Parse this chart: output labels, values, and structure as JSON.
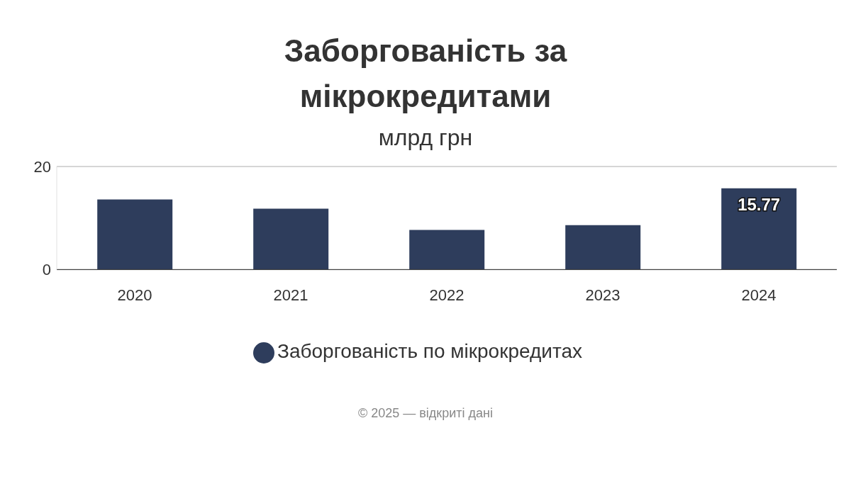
{
  "chart_data": {
    "type": "bar",
    "title": "Заборгованість за мікрокредитами",
    "subtitle": "млрд грн",
    "categories": [
      "2020",
      "2021",
      "2022",
      "2023",
      "2024"
    ],
    "series": [
      {
        "name": "Заборгованість по мікрокредитах",
        "color": "#2e3d5c",
        "values": [
          13.6,
          11.8,
          7.7,
          8.6,
          15.77
        ],
        "value_labels": [
          null,
          null,
          null,
          null,
          "15.77"
        ]
      }
    ],
    "ylim": [
      0,
      20
    ],
    "yticks": [
      0,
      20
    ],
    "grid": "y",
    "legend": "bottom",
    "annotations": [
      "© 2025 — відкриті дані"
    ]
  }
}
